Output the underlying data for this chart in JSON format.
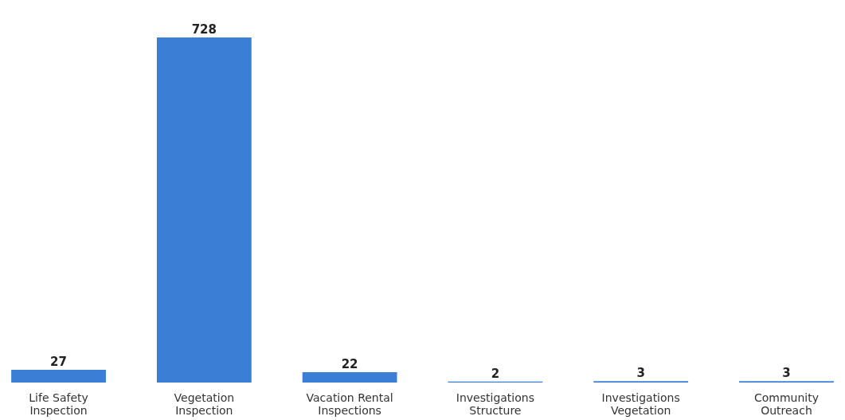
{
  "chart_data": {
    "type": "bar",
    "categories": [
      "Life Safety\nInspection",
      "Vegetation\nInspection",
      "Vacation Rental\nInspections",
      "Investigations\nStructure",
      "Investigations\nVegetation",
      "Community\nOutreach"
    ],
    "values": [
      27,
      728,
      22,
      2,
      3,
      3
    ],
    "color": "#3a7fd5",
    "data_labels": true
  }
}
